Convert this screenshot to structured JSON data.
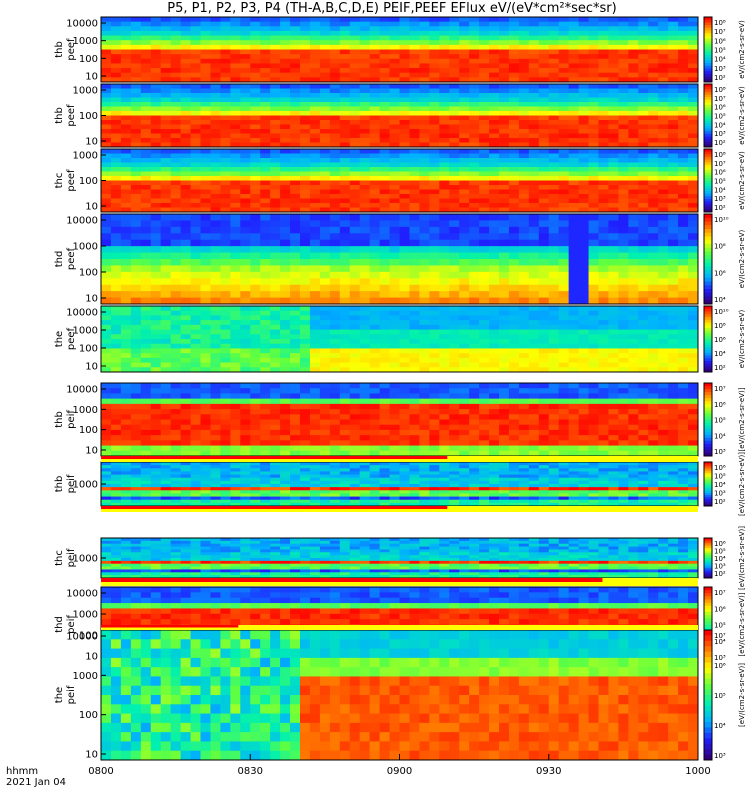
{
  "figure": {
    "title": "P5, P1, P2, P3, P4 (TH-A,B,C,D,E) PEIF,PEEF EFlux eV/(eV*cm²*sec*sr)",
    "time_label": "hhmm",
    "date_label": "2021 Jan 04",
    "colorbar_title_electron": "eV/(cm2-s-sr-eV)",
    "colorbar_title_ion": "[eV/(cm2-s-sr-eV)]",
    "colormap": [
      "#30007f",
      "#2020ff",
      "#00b0ff",
      "#00f0b0",
      "#60ff40",
      "#ffff00",
      "#ff8000",
      "#ff0000"
    ]
  },
  "x_axis": {
    "ticks": [
      "0800",
      "0830",
      "0900",
      "0930",
      "1000"
    ],
    "range_minutes": [
      0,
      120
    ]
  },
  "chart_data": {
    "type": "heatmap",
    "x_unit": "UT hhmm",
    "panels": [
      {
        "ylabel": [
          "thb",
          "peef"
        ],
        "yticks": [
          "10000",
          "1000",
          "100",
          "10"
        ],
        "cbar_ticks": [
          "10⁸",
          "10⁷",
          "10⁶",
          "10⁵",
          "10⁴",
          "10³",
          "10²"
        ],
        "mode": "electron",
        "cut": null
      },
      {
        "ylabel": [
          "thb",
          "peef"
        ],
        "yticks": [
          "1000",
          "100",
          "10"
        ],
        "cbar_ticks": [
          "10⁸",
          "10⁷",
          "10⁶",
          "10⁵",
          "10⁴",
          "10³",
          "10²"
        ],
        "mode": "electron",
        "cut": null
      },
      {
        "ylabel": [
          "thc",
          "peef"
        ],
        "yticks": [
          "1000",
          "100",
          "10"
        ],
        "cbar_ticks": [
          "10⁸",
          "10⁷",
          "10⁶",
          "10⁵",
          "10⁴",
          "10³",
          "10²"
        ],
        "mode": "electron",
        "cut": null
      },
      {
        "ylabel": [
          "thd",
          "peef"
        ],
        "yticks": [
          "10000",
          "1000",
          "100",
          "10"
        ],
        "cbar_ticks": [
          "10¹⁰",
          "10⁸",
          "10⁶",
          "10⁴"
        ],
        "mode": "electron_d",
        "cut": null
      },
      {
        "ylabel": [
          "the",
          "peef"
        ],
        "yticks": [
          "10000",
          "1000",
          "100",
          "10"
        ],
        "cbar_ticks": [
          "10¹⁰",
          "10⁸",
          "10⁶",
          "10⁴",
          "10²"
        ],
        "mode": "electron_e",
        "cut": null
      },
      {
        "ylabel": [
          "thb",
          "peif"
        ],
        "yticks": [
          "10000",
          "1000",
          "100",
          "10"
        ],
        "cbar_ticks": [
          "10⁷",
          "10⁶",
          "10⁵",
          "10⁴",
          "10³"
        ],
        "mode": "ion",
        "cut": null
      },
      {
        "ylabel": [
          "thb",
          "peif"
        ],
        "yticks": [
          "1000"
        ],
        "cbar_ticks": [
          "10⁶",
          "10⁵",
          "10⁴",
          "10³",
          "10²"
        ],
        "mode": "ion_mid",
        "cut": 0.58
      },
      {
        "ylabel": [
          "thc",
          "peif"
        ],
        "yticks": [
          "1000"
        ],
        "cbar_ticks": [
          "10⁶",
          "10⁵",
          "10⁴",
          "10³",
          "10²"
        ],
        "mode": "ion_mid",
        "cut": 0.58
      },
      {
        "ylabel": [
          "thd",
          "peif"
        ],
        "yticks": [
          "10000",
          "1000",
          "100",
          "10"
        ],
        "cbar_ticks": [
          "10⁷",
          "10⁶",
          "10⁵",
          "10⁴",
          "10³"
        ],
        "mode": "ion",
        "cut": 0.6
      },
      {
        "ylabel": [
          "the",
          "peif"
        ],
        "yticks": [
          "10000",
          "1000",
          "100",
          "10"
        ],
        "cbar_ticks": [
          "10⁷",
          "10⁶",
          "10⁵",
          "10⁴",
          "10³"
        ],
        "mode": "ion_e",
        "cut": 0.23
      }
    ]
  }
}
